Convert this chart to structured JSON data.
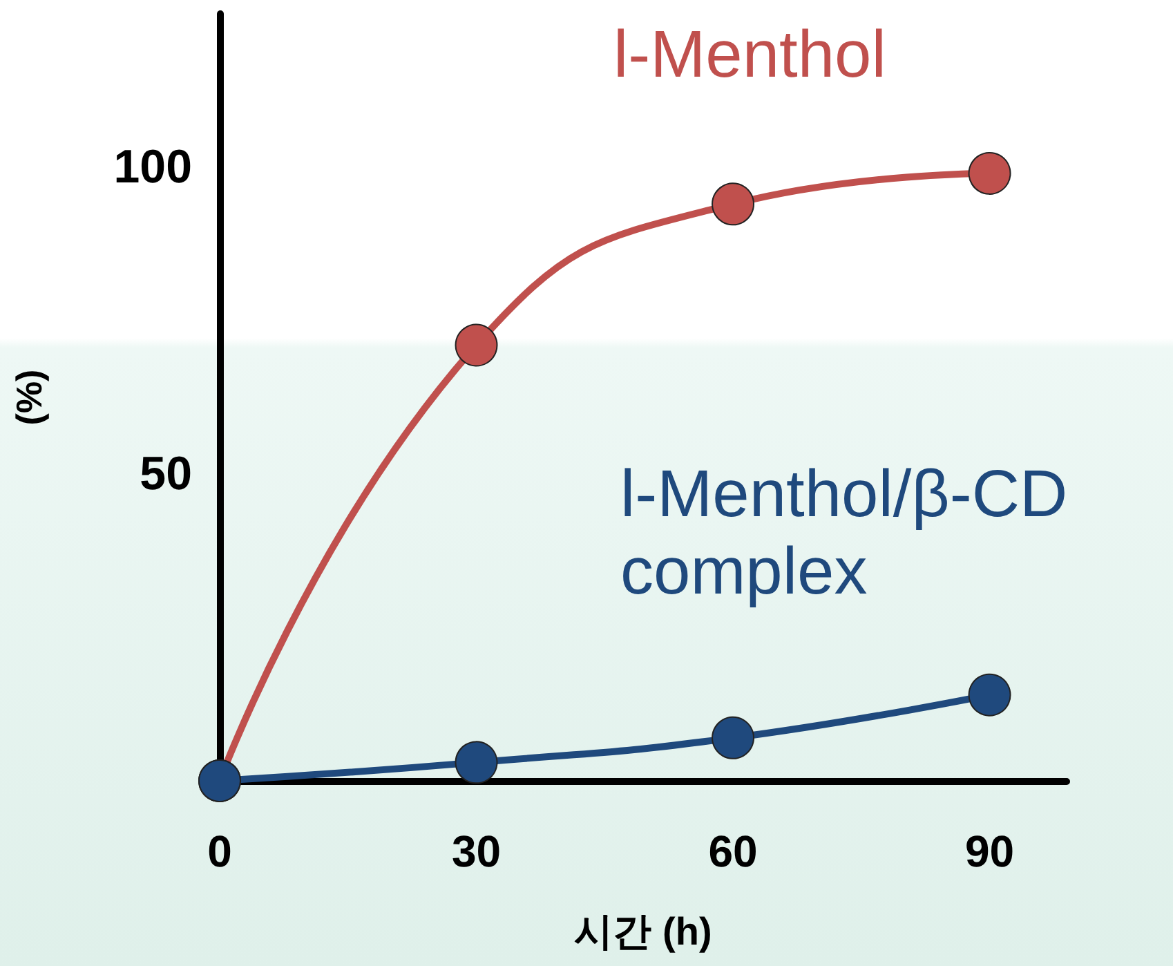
{
  "chart_data": {
    "type": "line",
    "xlabel": "시간 (h)",
    "ylabel": "(%)",
    "x": [
      0,
      30,
      60,
      90
    ],
    "series": [
      {
        "name": "l-Menthol",
        "color": "#c0504d",
        "values": [
          0,
          71,
          94,
          99
        ]
      },
      {
        "name": "l-Menthol/β-CD complex",
        "color": "#1f497d",
        "values": [
          0,
          3,
          7,
          14
        ]
      }
    ],
    "xlim": [
      0,
      99
    ],
    "xticks": [
      0,
      30,
      60,
      90
    ],
    "ylim": [
      0,
      125
    ],
    "yticks": [
      50,
      100
    ],
    "grid": false,
    "legend": false,
    "marker": "circle",
    "line_style": "solid"
  }
}
